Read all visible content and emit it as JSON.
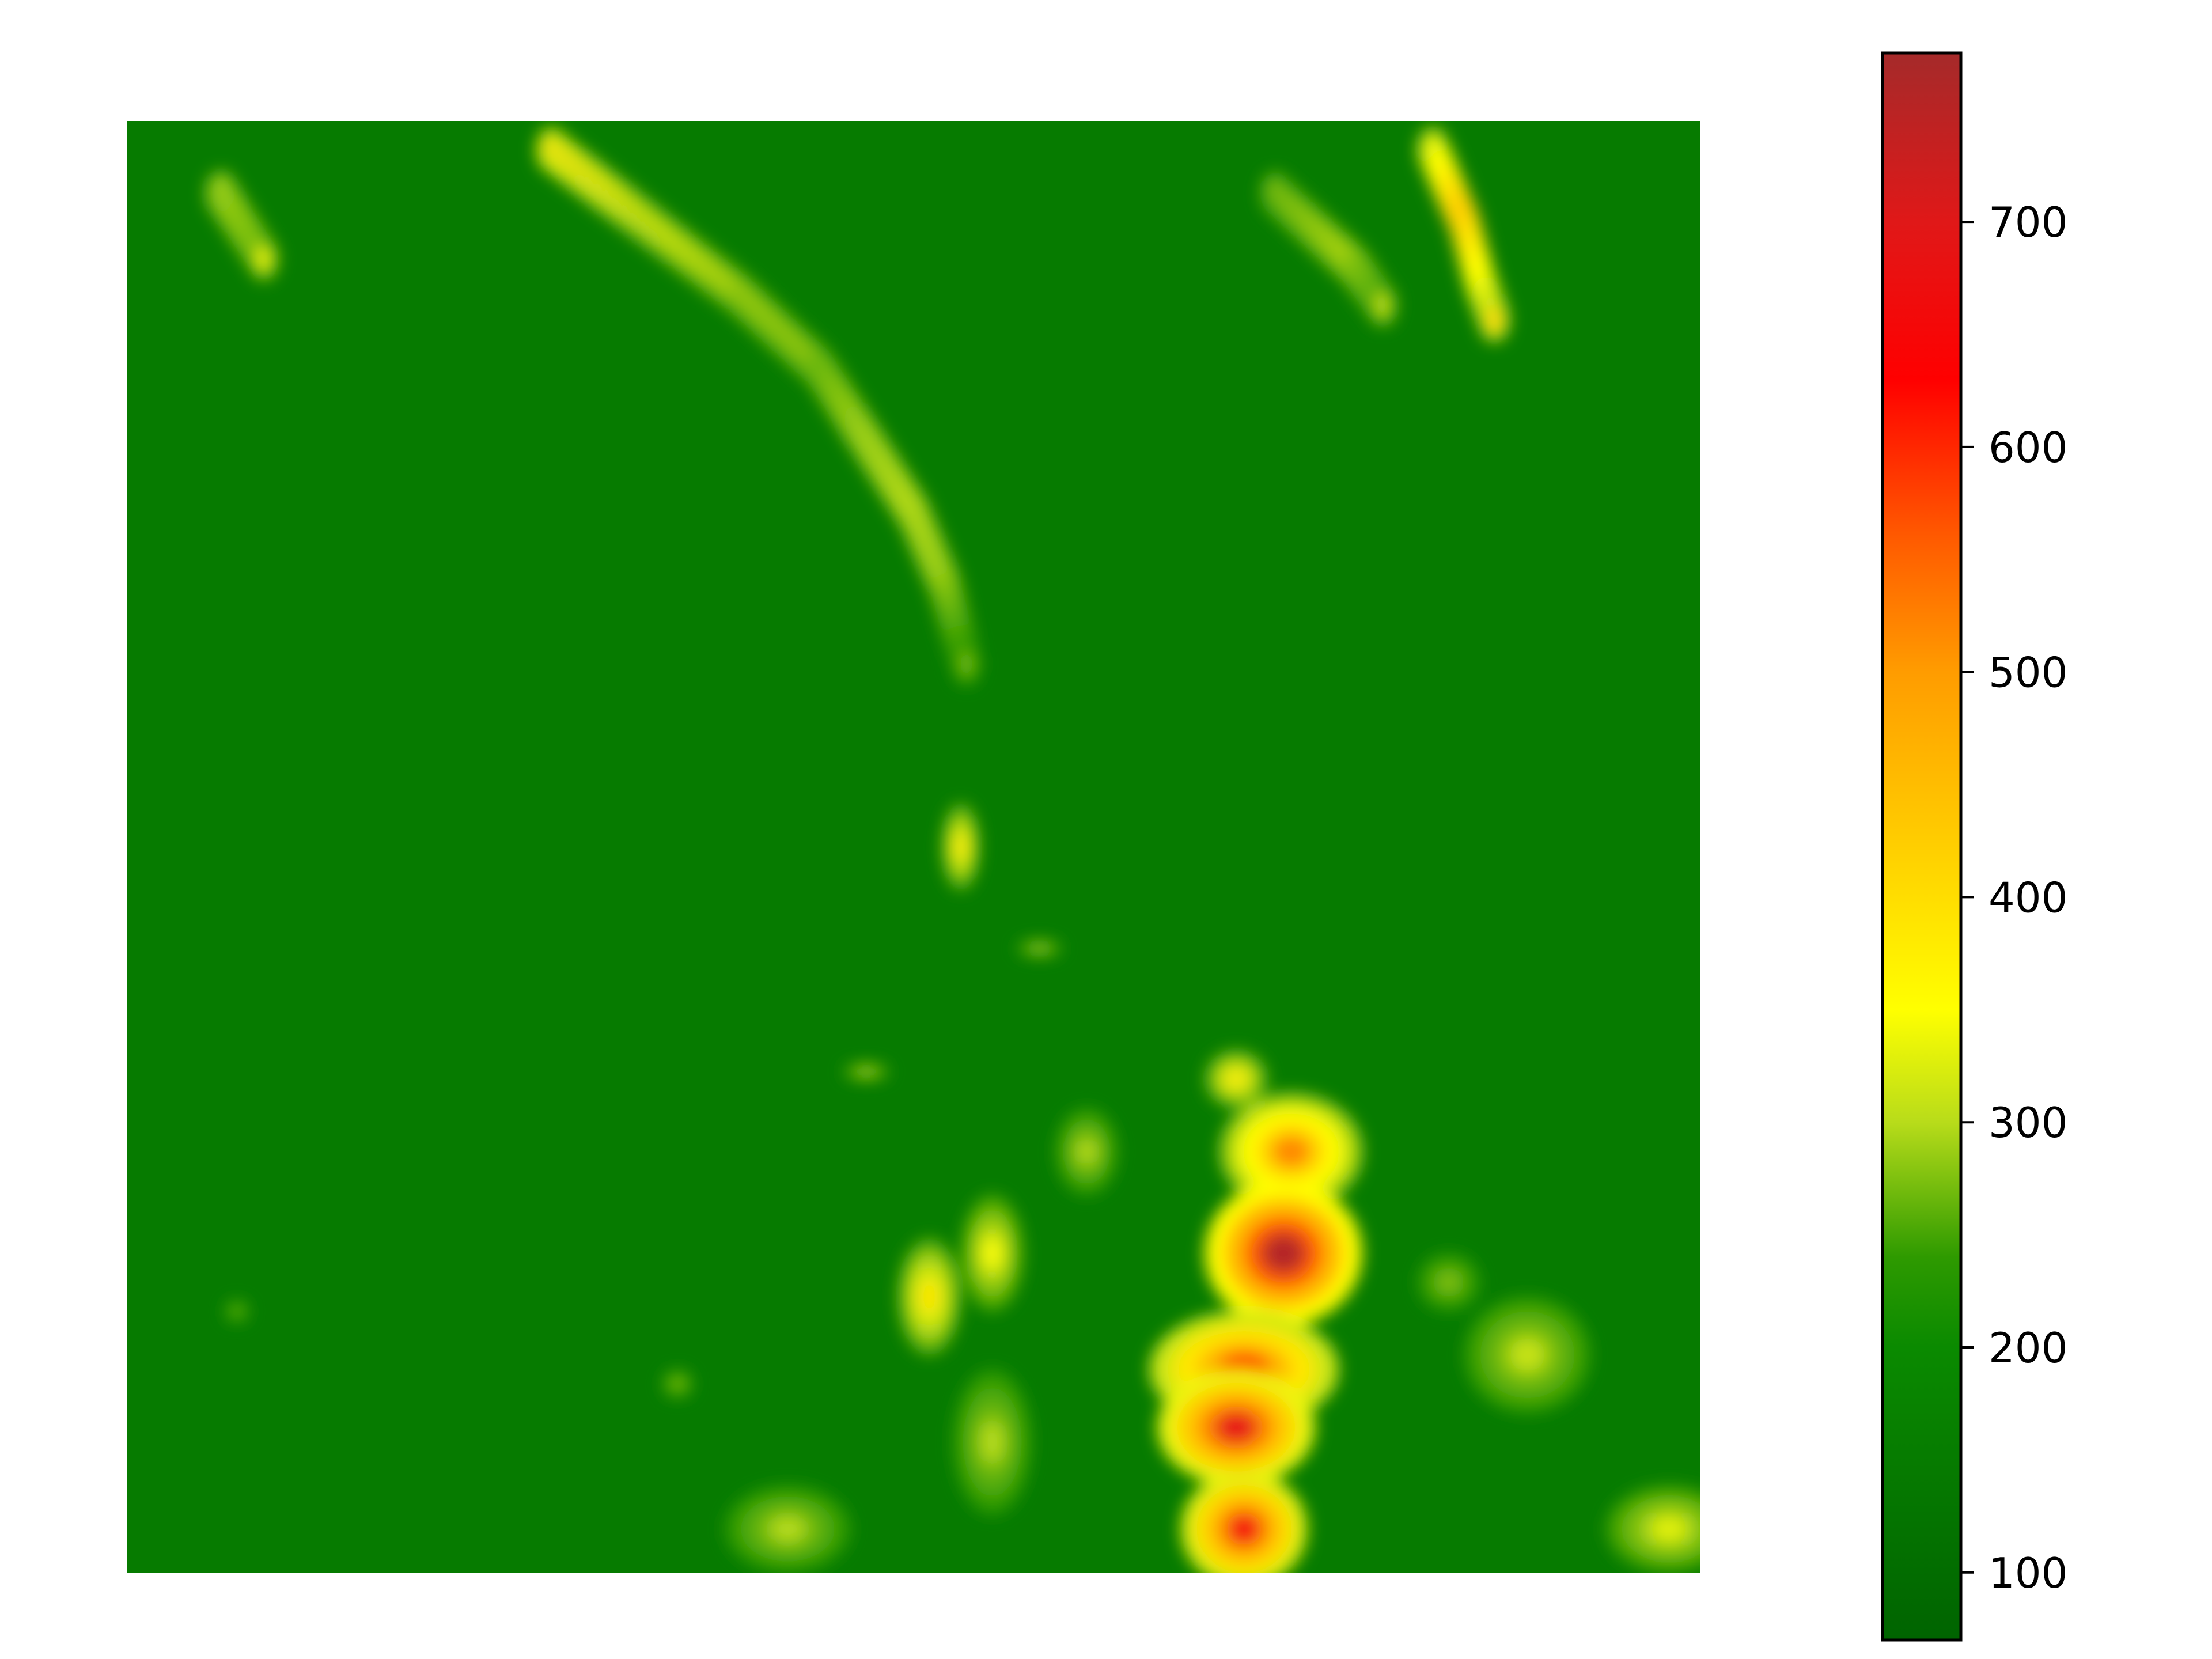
{
  "chart_data": {
    "type": "heatmap",
    "title": "",
    "xlabel": "",
    "ylabel": "",
    "axes_visible": false,
    "grid": false,
    "colorbar": {
      "placement": "right",
      "vmin": 70,
      "vmax": 775,
      "ticks": [
        100,
        200,
        300,
        400,
        500,
        600,
        700
      ],
      "tick_labels": [
        "100",
        "200",
        "300",
        "400",
        "500",
        "600",
        "700"
      ],
      "colorscale": [
        {
          "value": 70,
          "color": "#006400"
        },
        {
          "value": 200,
          "color": "#0a8a00"
        },
        {
          "value": 240,
          "color": "#2e9a00"
        },
        {
          "value": 300,
          "color": "#b8dc1a"
        },
        {
          "value": 350,
          "color": "#ffff00"
        },
        {
          "value": 420,
          "color": "#ffd000"
        },
        {
          "value": 500,
          "color": "#ff9c00"
        },
        {
          "value": 560,
          "color": "#ff5a00"
        },
        {
          "value": 630,
          "color": "#ff0000"
        },
        {
          "value": 700,
          "color": "#e01818"
        },
        {
          "value": 775,
          "color": "#a52a2a"
        }
      ]
    },
    "background_value": 150,
    "features": [
      {
        "kind": "ridge",
        "points": [
          [
            0.27,
            0.02,
            440
          ],
          [
            0.33,
            0.07,
            360
          ],
          [
            0.39,
            0.12,
            330
          ],
          [
            0.44,
            0.17,
            320
          ],
          [
            0.47,
            0.22,
            360
          ],
          [
            0.5,
            0.27,
            380
          ],
          [
            0.52,
            0.32,
            360
          ],
          [
            0.535,
            0.38,
            260
          ]
        ]
      },
      {
        "kind": "ridge",
        "points": [
          [
            0.06,
            0.05,
            360
          ],
          [
            0.09,
            0.1,
            330
          ]
        ]
      },
      {
        "kind": "ridge",
        "points": [
          [
            0.73,
            0.05,
            300
          ],
          [
            0.78,
            0.1,
            350
          ],
          [
            0.8,
            0.13,
            300
          ]
        ]
      },
      {
        "kind": "ridge",
        "points": [
          [
            0.83,
            0.02,
            420
          ],
          [
            0.85,
            0.07,
            640
          ],
          [
            0.86,
            0.11,
            500
          ],
          [
            0.87,
            0.14,
            400
          ]
        ]
      },
      {
        "kind": "blob",
        "x": 0.53,
        "y": 0.5,
        "rx": 0.012,
        "ry": 0.03,
        "value": 380
      },
      {
        "kind": "blob",
        "x": 0.74,
        "y": 0.71,
        "rx": 0.045,
        "ry": 0.04,
        "value": 520
      },
      {
        "kind": "blob",
        "x": 0.735,
        "y": 0.78,
        "rx": 0.05,
        "ry": 0.05,
        "value": 760
      },
      {
        "kind": "blob",
        "x": 0.71,
        "y": 0.86,
        "rx": 0.06,
        "ry": 0.04,
        "value": 600
      },
      {
        "kind": "blob",
        "x": 0.705,
        "y": 0.9,
        "rx": 0.05,
        "ry": 0.04,
        "value": 690
      },
      {
        "kind": "blob",
        "x": 0.71,
        "y": 0.97,
        "rx": 0.04,
        "ry": 0.04,
        "value": 660
      },
      {
        "kind": "blob",
        "x": 0.705,
        "y": 0.66,
        "rx": 0.02,
        "ry": 0.02,
        "value": 380
      },
      {
        "kind": "blob",
        "x": 0.51,
        "y": 0.81,
        "rx": 0.02,
        "ry": 0.04,
        "value": 390
      },
      {
        "kind": "blob",
        "x": 0.55,
        "y": 0.78,
        "rx": 0.02,
        "ry": 0.04,
        "value": 350
      },
      {
        "kind": "blob",
        "x": 0.61,
        "y": 0.71,
        "rx": 0.02,
        "ry": 0.03,
        "value": 300
      },
      {
        "kind": "blob",
        "x": 0.89,
        "y": 0.85,
        "rx": 0.04,
        "ry": 0.04,
        "value": 310
      },
      {
        "kind": "blob",
        "x": 0.84,
        "y": 0.8,
        "rx": 0.02,
        "ry": 0.02,
        "value": 280
      },
      {
        "kind": "blob",
        "x": 0.42,
        "y": 0.97,
        "rx": 0.04,
        "ry": 0.03,
        "value": 300
      },
      {
        "kind": "blob",
        "x": 0.98,
        "y": 0.97,
        "rx": 0.04,
        "ry": 0.03,
        "value": 330
      },
      {
        "kind": "blob",
        "x": 0.58,
        "y": 0.57,
        "rx": 0.015,
        "ry": 0.006,
        "value": 300
      },
      {
        "kind": "blob",
        "x": 0.47,
        "y": 0.655,
        "rx": 0.015,
        "ry": 0.006,
        "value": 310
      },
      {
        "kind": "blob",
        "x": 0.07,
        "y": 0.82,
        "rx": 0.008,
        "ry": 0.008,
        "value": 270
      },
      {
        "kind": "blob",
        "x": 0.35,
        "y": 0.87,
        "rx": 0.01,
        "ry": 0.01,
        "value": 280
      },
      {
        "kind": "blob",
        "x": 0.55,
        "y": 0.91,
        "rx": 0.025,
        "ry": 0.05,
        "value": 300
      }
    ]
  }
}
